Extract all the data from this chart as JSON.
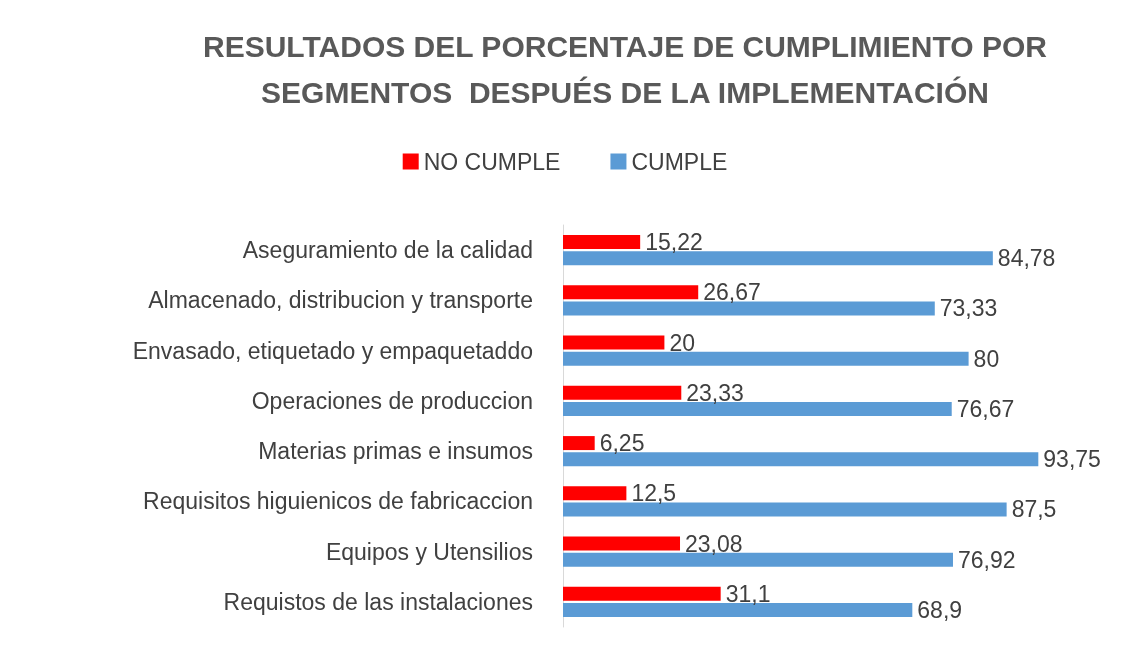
{
  "chart_data": {
    "type": "bar",
    "orientation": "horizontal",
    "title": "RESULTADOS DEL PORCENTAJE DE CUMPLIMIENTO POR\nSEGMENTOS  DESPUÉS DE LA IMPLEMENTACIÓN",
    "categories": [
      "Aseguramiento de la calidad",
      "Almacenado, distribucion y transporte",
      "Envasado, etiquetado y empaquetaddo",
      "Operaciones de produccion",
      "Materias primas e insumos",
      "Requisitos higuienicos de fabricaccion",
      "Equipos y Utensilios",
      "Requistos de las instalaciones"
    ],
    "series": [
      {
        "name": "NO CUMPLE",
        "color": "#ff0000",
        "values": [
          15.22,
          26.67,
          20,
          23.33,
          6.25,
          12.5,
          23.08,
          31.1
        ],
        "value_labels": [
          "15,22",
          "26,67",
          "20",
          "23,33",
          "6,25",
          "12,5",
          "23,08",
          "31,1"
        ]
      },
      {
        "name": "CUMPLE",
        "color": "#5b9bd5",
        "values": [
          84.78,
          73.33,
          80,
          76.67,
          93.75,
          87.5,
          76.92,
          68.9
        ],
        "value_labels": [
          "84,78",
          "73,33",
          "80",
          "76,67",
          "93,75",
          "87,5",
          "76,92",
          "68,9"
        ]
      }
    ],
    "legend": "top",
    "grid": false
  }
}
